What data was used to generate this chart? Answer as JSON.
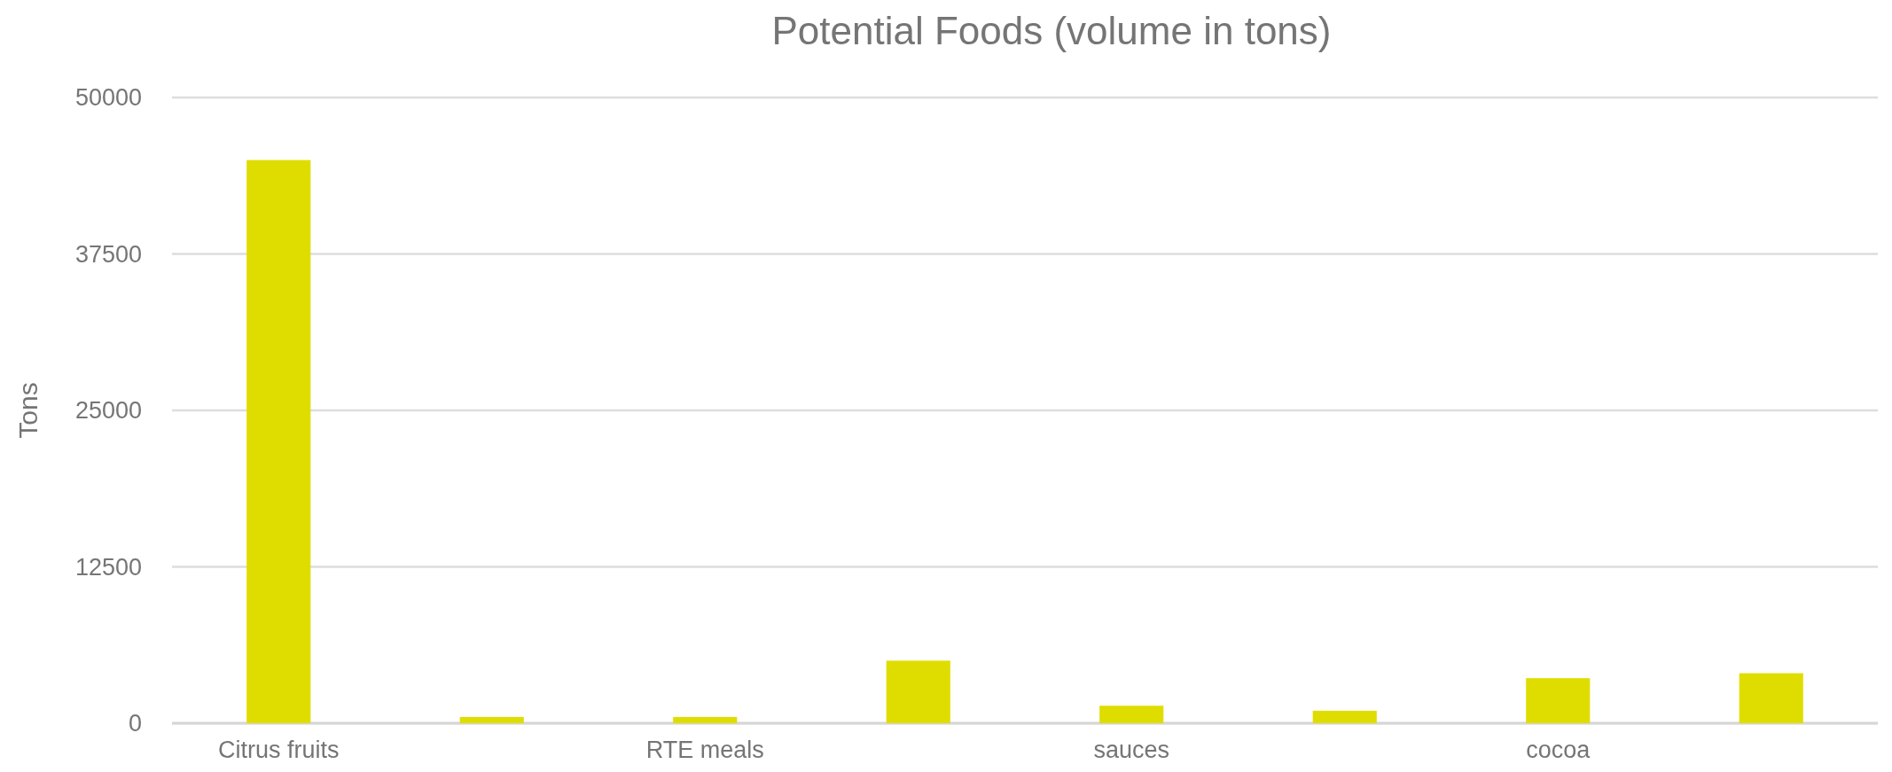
{
  "chart_data": {
    "type": "bar",
    "title": "Potential Foods (volume in tons)",
    "ylabel": "Tons",
    "categories": [
      "Citrus fruits",
      null,
      "RTE meals",
      null,
      "sauces",
      null,
      "cocoa",
      null
    ],
    "values": [
      45000,
      500,
      500,
      5000,
      1400,
      1000,
      3600,
      4000
    ],
    "color": "#dfdd00",
    "ylim": [
      0,
      50000
    ],
    "yticks": [
      0,
      12500,
      25000,
      37500,
      50000
    ],
    "grid": "y"
  }
}
